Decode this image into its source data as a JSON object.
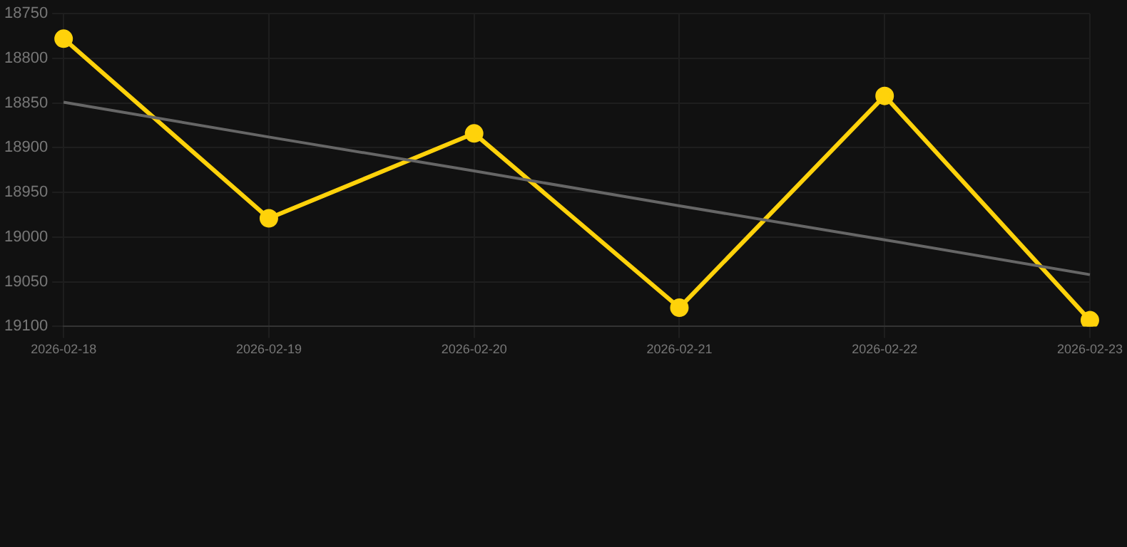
{
  "chart_data": {
    "type": "line",
    "categories": [
      "2026-02-18",
      "2026-02-19",
      "2026-02-20",
      "2026-02-21",
      "2026-02-22",
      "2026-02-23"
    ],
    "series": [
      {
        "color": "#ffd20a",
        "values": [
          18778,
          18979,
          18884,
          19079,
          18842,
          19093
        ],
        "marker": "circle"
      },
      {
        "type": "line",
        "color": "#666666",
        "values": [
          18849,
          18888,
          18926,
          18965,
          19003,
          19042
        ],
        "marker": "none"
      }
    ],
    "ylim": [
      19100,
      18750
    ],
    "yticks": [
      18750,
      18800,
      18850,
      18900,
      18950,
      19000,
      19050,
      19100
    ],
    "grid": true,
    "legend": false
  }
}
